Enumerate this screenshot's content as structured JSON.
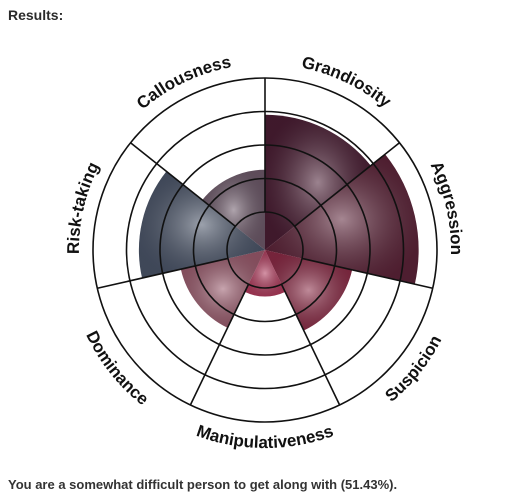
{
  "results": {
    "heading": "Results:",
    "summary": "You are a somewhat difficult person to get along with (51.43%)."
  },
  "chart_data": {
    "type": "polar-area",
    "rings": 5,
    "ring_max": 5,
    "sectors": [
      {
        "label": "Grandiosity",
        "value": 3.8,
        "color": "#4a1d33"
      },
      {
        "label": "Aggression",
        "value": 4.4,
        "color": "#5c2338"
      },
      {
        "label": "Suspicion",
        "value": 2.3,
        "color": "#8a2a45"
      },
      {
        "label": "Manipulativeness",
        "value": 0.9,
        "color": "#b03a5c"
      },
      {
        "label": "Dominance",
        "value": 2.2,
        "color": "#9a5a6c"
      },
      {
        "label": "Risk-taking",
        "value": 3.5,
        "color": "#4a5468"
      },
      {
        "label": "Callousness",
        "value": 2.0,
        "color": "#6e5a6a"
      }
    ]
  }
}
